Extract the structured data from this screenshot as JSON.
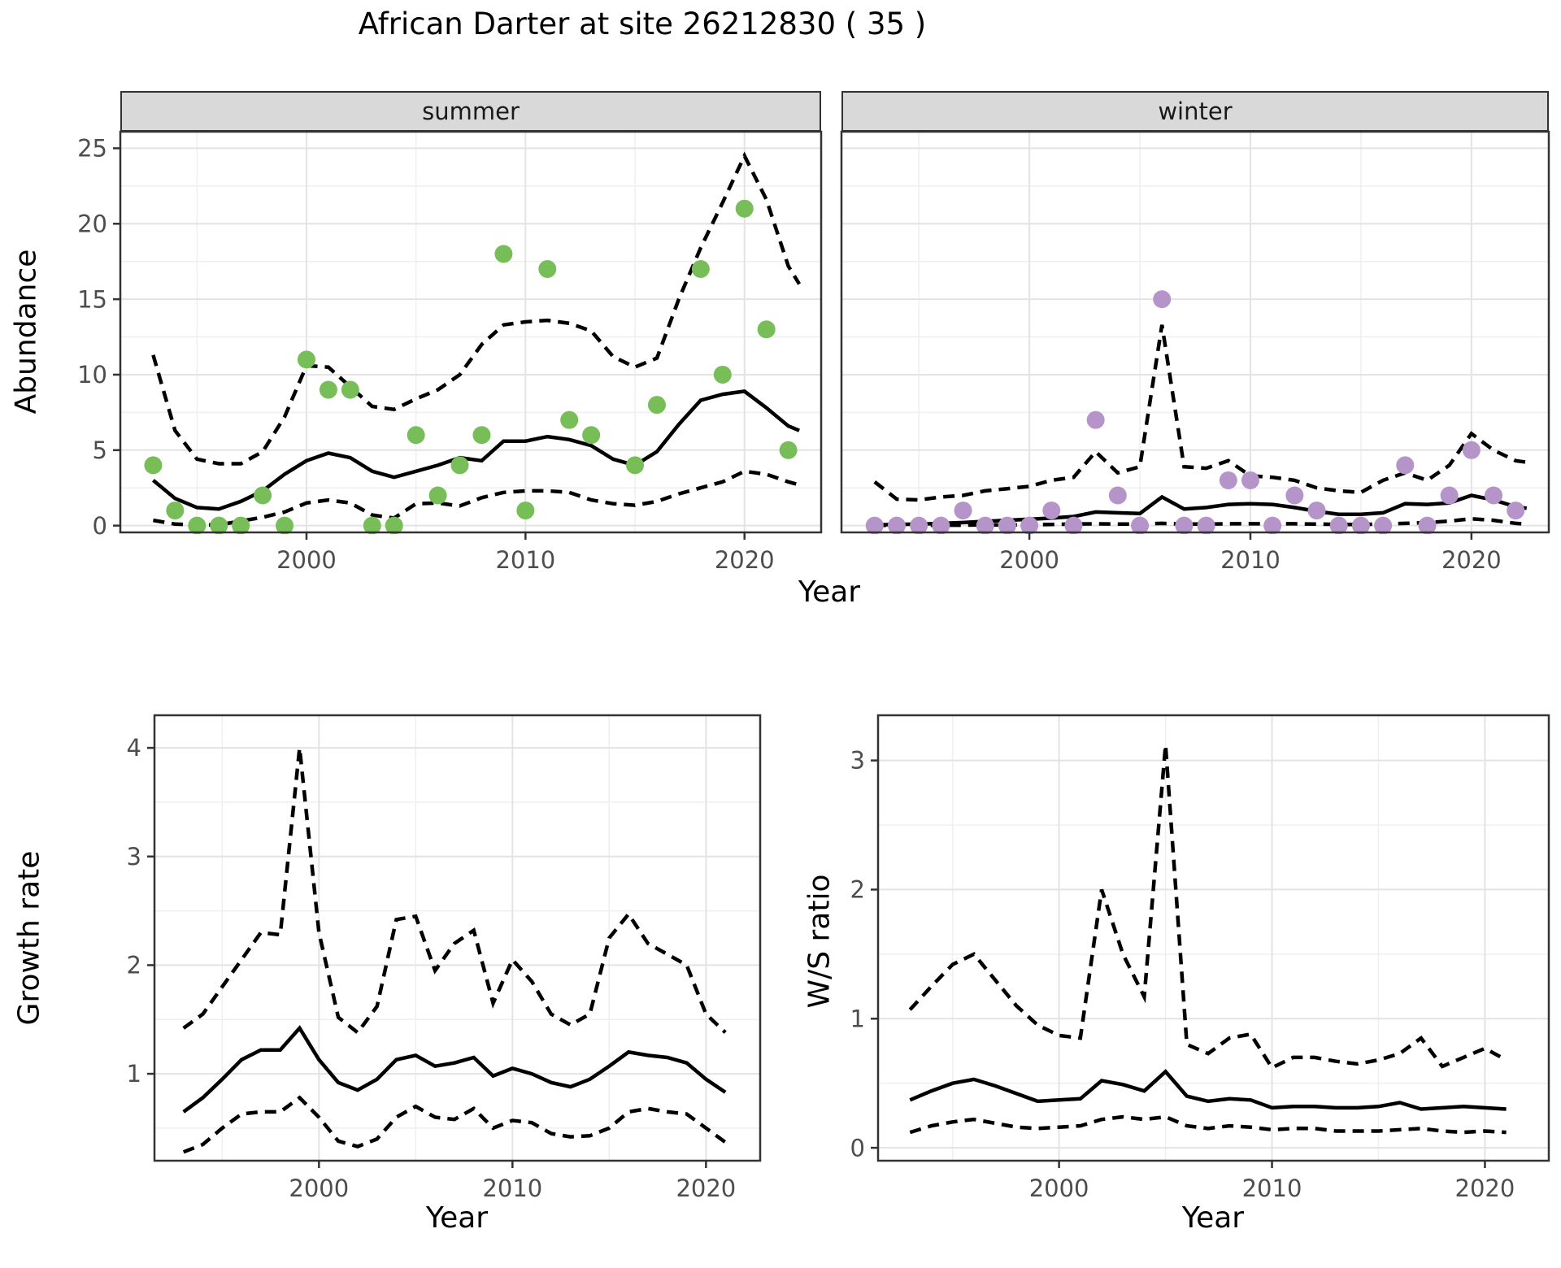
{
  "title": "African Darter at site 26212830 ( 35 )",
  "axes": {
    "x_label_top": "Year",
    "x_label_growth": "Year",
    "x_label_ws": "Year",
    "y_label_abundance": "Abundance",
    "y_label_growth": "Growth rate",
    "y_label_ws": "W/S ratio"
  },
  "colors": {
    "summer_point": "#77be59",
    "winter_point": "#b594ca",
    "line": "#000000",
    "strip_bg": "#d9d9d9",
    "panel_border": "#333333",
    "grid_major": "#e3e3e3",
    "grid_minor": "#efefef",
    "tick_text": "#4d4d4d"
  },
  "chart_data": [
    {
      "id": "summer",
      "type": "scatter",
      "facet_label": "summer",
      "xlim": [
        1991.5,
        2023.5
      ],
      "ylim": [
        -0.45,
        26.1
      ],
      "x_ticks": [
        2000,
        2010,
        2020
      ],
      "x_minor": [
        1995,
        2005,
        2015
      ],
      "y_ticks": [
        0,
        5,
        10,
        15,
        20,
        25
      ],
      "y_minor": [
        2.5,
        7.5,
        12.5,
        17.5,
        22.5
      ],
      "show_y_tick_labels": true,
      "point_color_key": "summer_point",
      "points": {
        "x": [
          1993,
          1994,
          1995,
          1996,
          1997,
          1998,
          1999,
          2000,
          2001,
          2002,
          2003,
          2004,
          2005,
          2006,
          2007,
          2008,
          2009,
          2010,
          2011,
          2012,
          2013,
          2015,
          2016,
          2018,
          2019,
          2020,
          2021,
          2022
        ],
        "y": [
          4,
          1,
          0,
          0,
          0,
          2,
          0,
          11,
          9,
          9,
          0,
          0,
          6,
          2,
          4,
          6,
          18,
          1,
          17,
          7,
          6,
          4,
          8,
          17,
          10,
          21,
          13,
          5
        ]
      },
      "fit": {
        "x": [
          1993,
          1994,
          1995,
          1996,
          1997,
          1998,
          1999,
          2000,
          2001,
          2002,
          2003,
          2004,
          2005,
          2006,
          2007,
          2008,
          2009,
          2010,
          2011,
          2012,
          2013,
          2014,
          2015,
          2016,
          2017,
          2018,
          2019,
          2020,
          2021,
          2022,
          2022.5
        ],
        "y": [
          3.0,
          1.8,
          1.2,
          1.1,
          1.6,
          2.3,
          3.4,
          4.3,
          4.8,
          4.5,
          3.6,
          3.2,
          3.6,
          4.0,
          4.5,
          4.3,
          5.6,
          5.6,
          5.9,
          5.7,
          5.3,
          4.4,
          4.0,
          4.9,
          6.7,
          8.3,
          8.7,
          8.9,
          7.8,
          6.6,
          6.3
        ]
      },
      "upper": {
        "x": [
          1993,
          1994,
          1995,
          1996,
          1997,
          1998,
          1999,
          2000,
          2001,
          2002,
          2003,
          2004,
          2005,
          2006,
          2007,
          2008,
          2009,
          2010,
          2011,
          2012,
          2013,
          2014,
          2015,
          2016,
          2017,
          2018,
          2019,
          2020,
          2021,
          2022,
          2022.5
        ],
        "y": [
          11.3,
          6.3,
          4.4,
          4.1,
          4.1,
          4.9,
          7.2,
          10.6,
          10.5,
          9.2,
          7.9,
          7.7,
          8.4,
          9.0,
          10.0,
          12.0,
          13.3,
          13.5,
          13.6,
          13.4,
          12.9,
          11.2,
          10.5,
          11.1,
          15.0,
          18.4,
          21.4,
          24.5,
          21.6,
          17.2,
          16.0
        ]
      },
      "lower": {
        "x": [
          1993,
          1994,
          1995,
          1996,
          1997,
          1998,
          1999,
          2000,
          2001,
          2002,
          2003,
          2004,
          2005,
          2006,
          2007,
          2008,
          2009,
          2010,
          2011,
          2012,
          2013,
          2014,
          2015,
          2016,
          2017,
          2018,
          2019,
          2020,
          2021,
          2022,
          2022.5
        ],
        "y": [
          0.35,
          0.1,
          0.05,
          0.05,
          0.3,
          0.55,
          0.9,
          1.5,
          1.7,
          1.5,
          0.7,
          0.5,
          1.45,
          1.5,
          1.3,
          1.85,
          2.2,
          2.3,
          2.3,
          2.2,
          1.7,
          1.45,
          1.35,
          1.6,
          2.1,
          2.5,
          2.9,
          3.6,
          3.4,
          2.9,
          2.7
        ]
      }
    },
    {
      "id": "winter",
      "type": "scatter",
      "facet_label": "winter",
      "xlim": [
        1991.5,
        2023.5
      ],
      "ylim": [
        -0.45,
        26.1
      ],
      "x_ticks": [
        2000,
        2010,
        2020
      ],
      "x_minor": [
        1995,
        2005,
        2015
      ],
      "y_ticks": [
        0,
        5,
        10,
        15,
        20,
        25
      ],
      "y_minor": [
        2.5,
        7.5,
        12.5,
        17.5,
        22.5
      ],
      "show_y_tick_labels": false,
      "point_color_key": "winter_point",
      "points": {
        "x": [
          1993,
          1994,
          1995,
          1996,
          1997,
          1998,
          1999,
          2000,
          2001,
          2002,
          2003,
          2004,
          2005,
          2006,
          2007,
          2008,
          2009,
          2010,
          2011,
          2012,
          2013,
          2014,
          2015,
          2016,
          2017,
          2018,
          2019,
          2020,
          2021,
          2022
        ],
        "y": [
          0,
          0,
          0,
          0,
          1,
          0,
          0,
          0,
          1,
          0,
          7,
          2,
          0,
          15,
          0,
          0,
          3,
          3,
          0,
          2,
          1,
          0,
          0,
          0,
          4,
          0,
          2,
          5,
          2,
          1
        ]
      },
      "fit": {
        "x": [
          1993,
          1994,
          1995,
          1996,
          1997,
          1998,
          1999,
          2000,
          2001,
          2002,
          2003,
          2004,
          2005,
          2006,
          2007,
          2008,
          2009,
          2010,
          2011,
          2012,
          2013,
          2014,
          2015,
          2016,
          2017,
          2018,
          2019,
          2020,
          2021,
          2022,
          2022.5
        ],
        "y": [
          0.05,
          0.08,
          0.1,
          0.15,
          0.2,
          0.28,
          0.35,
          0.42,
          0.5,
          0.6,
          0.9,
          0.85,
          0.8,
          1.9,
          1.1,
          1.2,
          1.4,
          1.45,
          1.4,
          1.2,
          0.95,
          0.75,
          0.75,
          0.85,
          1.45,
          1.4,
          1.5,
          2.0,
          1.7,
          1.25,
          1.15
        ]
      },
      "upper": {
        "x": [
          1993,
          1994,
          1995,
          1996,
          1997,
          1998,
          1999,
          2000,
          2001,
          2002,
          2003,
          2004,
          2005,
          2006,
          2007,
          2008,
          2009,
          2010,
          2011,
          2012,
          2013,
          2014,
          2015,
          2016,
          2017,
          2018,
          2019,
          2020,
          2021,
          2022,
          2022.5
        ],
        "y": [
          2.9,
          1.75,
          1.7,
          1.9,
          2.0,
          2.3,
          2.45,
          2.6,
          3.0,
          3.2,
          4.9,
          3.5,
          3.9,
          13.3,
          3.9,
          3.8,
          4.3,
          3.3,
          3.2,
          3.0,
          2.5,
          2.3,
          2.2,
          3.0,
          3.5,
          3.0,
          4.0,
          6.1,
          5.0,
          4.3,
          4.2
        ]
      },
      "lower": {
        "x": [
          1993,
          1994,
          1995,
          1996,
          1997,
          1998,
          1999,
          2000,
          2001,
          2002,
          2003,
          2004,
          2005,
          2006,
          2007,
          2008,
          2009,
          2010,
          2011,
          2012,
          2013,
          2014,
          2015,
          2016,
          2017,
          2018,
          2019,
          2020,
          2021,
          2022,
          2022.5
        ],
        "y": [
          0.02,
          0.02,
          0.02,
          0.03,
          0.03,
          0.05,
          0.05,
          0.06,
          0.08,
          0.1,
          0.12,
          0.1,
          0.1,
          0.15,
          0.1,
          0.1,
          0.12,
          0.12,
          0.12,
          0.12,
          0.1,
          0.08,
          0.08,
          0.1,
          0.15,
          0.2,
          0.3,
          0.45,
          0.35,
          0.15,
          0.1
        ]
      }
    },
    {
      "id": "growth",
      "type": "line",
      "facet_label": "",
      "xlim": [
        1991.5,
        2022.8
      ],
      "ylim": [
        0.2,
        4.3
      ],
      "x_ticks": [
        2000,
        2010,
        2020
      ],
      "x_minor": [
        1995,
        2005,
        2015
      ],
      "y_ticks": [
        1,
        2,
        3,
        4
      ],
      "y_minor": [
        0.5,
        1.5,
        2.5,
        3.5
      ],
      "show_y_tick_labels": true,
      "fit": {
        "x": [
          1993,
          1994,
          1995,
          1996,
          1997,
          1998,
          1999,
          2000,
          2001,
          2002,
          2003,
          2004,
          2005,
          2006,
          2007,
          2008,
          2009,
          2010,
          2011,
          2012,
          2013,
          2014,
          2015,
          2016,
          2017,
          2018,
          2019,
          2020,
          2021
        ],
        "y": [
          0.65,
          0.78,
          0.95,
          1.13,
          1.22,
          1.22,
          1.42,
          1.13,
          0.92,
          0.85,
          0.95,
          1.13,
          1.17,
          1.07,
          1.1,
          1.15,
          0.98,
          1.05,
          1.0,
          0.92,
          0.88,
          0.95,
          1.07,
          1.2,
          1.17,
          1.15,
          1.1,
          0.95,
          0.83
        ]
      },
      "upper": {
        "x": [
          1993,
          1994,
          1995,
          1996,
          1997,
          1998,
          1999,
          2000,
          2001,
          2002,
          2003,
          2004,
          2005,
          2006,
          2007,
          2008,
          2009,
          2010,
          2011,
          2012,
          2013,
          2014,
          2015,
          2016,
          2017,
          2018,
          2019,
          2020,
          2021
        ],
        "y": [
          1.42,
          1.55,
          1.8,
          2.05,
          2.3,
          2.28,
          4.0,
          2.3,
          1.52,
          1.38,
          1.62,
          2.42,
          2.45,
          1.95,
          2.2,
          2.32,
          1.65,
          2.05,
          1.85,
          1.55,
          1.45,
          1.55,
          2.25,
          2.47,
          2.2,
          2.1,
          2.0,
          1.55,
          1.38
        ]
      },
      "lower": {
        "x": [
          1993,
          1994,
          1995,
          1996,
          1997,
          1998,
          1999,
          2000,
          2001,
          2002,
          2003,
          2004,
          2005,
          2006,
          2007,
          2008,
          2009,
          2010,
          2011,
          2012,
          2013,
          2014,
          2015,
          2016,
          2017,
          2018,
          2019,
          2020,
          2021
        ],
        "y": [
          0.28,
          0.35,
          0.5,
          0.63,
          0.65,
          0.65,
          0.78,
          0.6,
          0.38,
          0.33,
          0.4,
          0.6,
          0.7,
          0.6,
          0.58,
          0.68,
          0.5,
          0.57,
          0.55,
          0.45,
          0.42,
          0.43,
          0.5,
          0.65,
          0.68,
          0.65,
          0.63,
          0.5,
          0.37
        ]
      }
    },
    {
      "id": "ws",
      "type": "line",
      "facet_label": "",
      "xlim": [
        1991.5,
        2023.0
      ],
      "ylim": [
        -0.1,
        3.35
      ],
      "x_ticks": [
        2000,
        2010,
        2020
      ],
      "x_minor": [
        1995,
        2005,
        2015
      ],
      "y_ticks": [
        0,
        1,
        2,
        3
      ],
      "y_minor": [
        0.5,
        1.5,
        2.5
      ],
      "show_y_tick_labels": true,
      "fit": {
        "x": [
          1993,
          1994,
          1995,
          1996,
          1997,
          1998,
          1999,
          2000,
          2001,
          2002,
          2003,
          2004,
          2005,
          2006,
          2007,
          2008,
          2009,
          2010,
          2011,
          2012,
          2013,
          2014,
          2015,
          2016,
          2017,
          2018,
          2019,
          2020,
          2021
        ],
        "y": [
          0.37,
          0.44,
          0.5,
          0.53,
          0.48,
          0.42,
          0.36,
          0.37,
          0.38,
          0.52,
          0.49,
          0.44,
          0.59,
          0.4,
          0.36,
          0.38,
          0.37,
          0.31,
          0.32,
          0.32,
          0.31,
          0.31,
          0.32,
          0.35,
          0.3,
          0.31,
          0.32,
          0.31,
          0.3
        ]
      },
      "upper": {
        "x": [
          1993,
          1994,
          1995,
          1996,
          1997,
          1998,
          1999,
          2000,
          2001,
          2002,
          2003,
          2004,
          2005,
          2006,
          2007,
          2008,
          2009,
          2010,
          2011,
          2012,
          2013,
          2014,
          2015,
          2016,
          2017,
          2018,
          2019,
          2020,
          2021
        ],
        "y": [
          1.07,
          1.25,
          1.42,
          1.5,
          1.3,
          1.1,
          0.95,
          0.87,
          0.85,
          2.0,
          1.5,
          1.17,
          3.12,
          0.8,
          0.73,
          0.85,
          0.88,
          0.62,
          0.7,
          0.7,
          0.67,
          0.65,
          0.68,
          0.73,
          0.85,
          0.63,
          0.7,
          0.77,
          0.68
        ]
      },
      "lower": {
        "x": [
          1993,
          1994,
          1995,
          1996,
          1997,
          1998,
          1999,
          2000,
          2001,
          2002,
          2003,
          2004,
          2005,
          2006,
          2007,
          2008,
          2009,
          2010,
          2011,
          2012,
          2013,
          2014,
          2015,
          2016,
          2017,
          2018,
          2019,
          2020,
          2021
        ],
        "y": [
          0.12,
          0.17,
          0.2,
          0.22,
          0.19,
          0.16,
          0.15,
          0.16,
          0.17,
          0.22,
          0.24,
          0.22,
          0.24,
          0.17,
          0.15,
          0.17,
          0.16,
          0.14,
          0.15,
          0.15,
          0.13,
          0.13,
          0.13,
          0.14,
          0.15,
          0.13,
          0.12,
          0.13,
          0.12
        ]
      }
    }
  ]
}
